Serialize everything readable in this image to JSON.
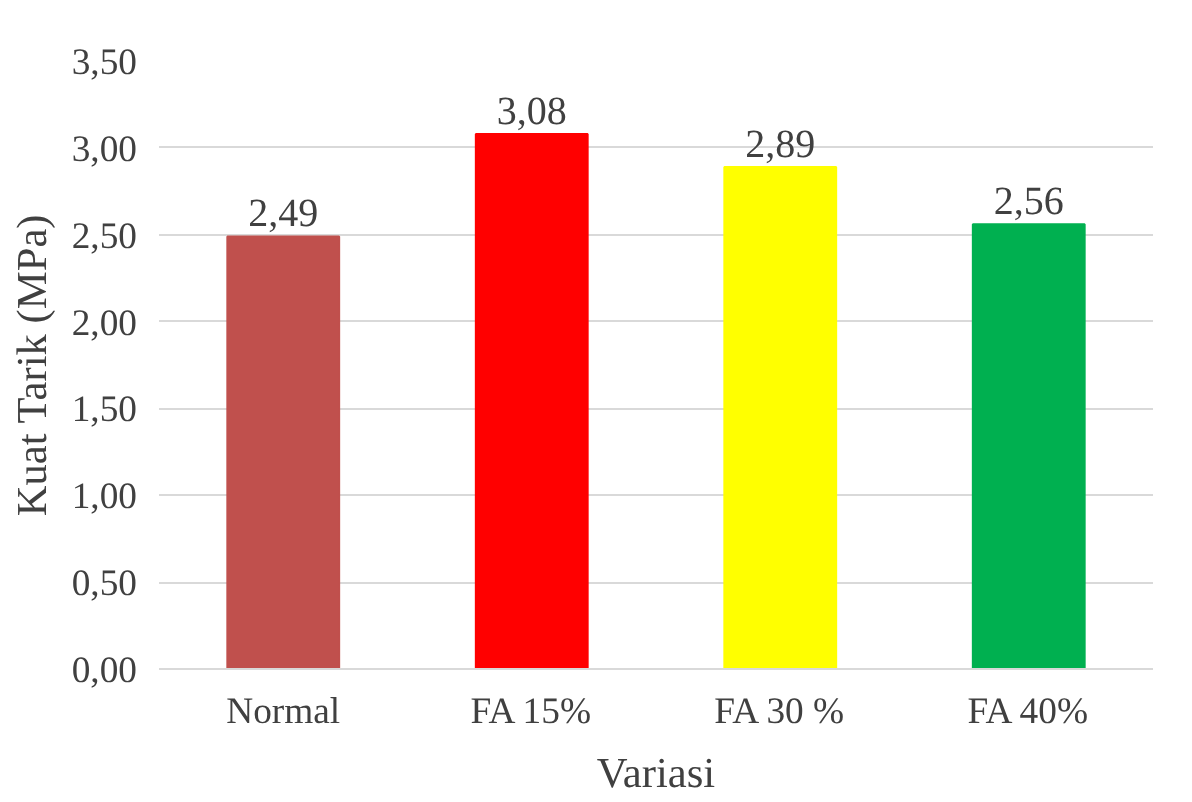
{
  "chart_data": {
    "type": "bar",
    "xlabel": "Variasi",
    "ylabel": "Kuat Tarik (MPa)",
    "categories": [
      "Normal",
      "FA 15%",
      "FA 30 %",
      "FA 40%"
    ],
    "values": [
      2.49,
      3.08,
      2.89,
      2.56
    ],
    "colors": [
      "#c0504d",
      "#ff0000",
      "#ffff00",
      "#00b050"
    ],
    "value_labels": [
      "2,49",
      "3,08",
      "2,89",
      "2,56"
    ],
    "ylim": [
      0,
      3.5
    ],
    "yticks": [
      {
        "value": 0,
        "label": "0,00"
      },
      {
        "value": 0.5,
        "label": "0,50"
      },
      {
        "value": 1,
        "label": "1,00"
      },
      {
        "value": 1.5,
        "label": "1,50"
      },
      {
        "value": 2,
        "label": "2,00"
      },
      {
        "value": 2.5,
        "label": "2,50"
      },
      {
        "value": 3,
        "label": "3,00"
      },
      {
        "value": 3.5,
        "label": "3,50"
      }
    ],
    "grid": "y"
  }
}
